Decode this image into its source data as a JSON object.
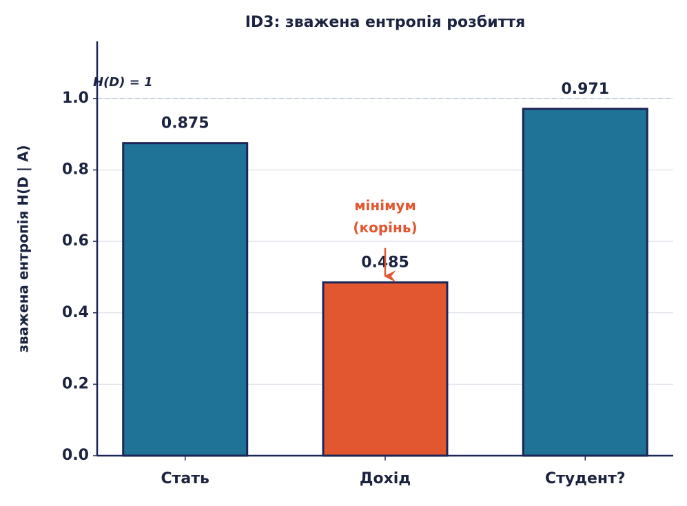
{
  "chart_data": {
    "type": "bar",
    "title": "ID3: зважена ентропія розбиття",
    "ylabel": "зважена ентропія H(D | A)",
    "categories": [
      "Стать",
      "Дохід",
      "Студент?"
    ],
    "values": [
      0.875,
      0.485,
      0.971
    ],
    "colors": [
      "#1f7396",
      "#e2572f",
      "#1f7396"
    ],
    "edge_color": "#1b2656",
    "ylim": [
      0,
      1.16
    ],
    "yticks": [
      {
        "value": 0,
        "label": "0.0"
      },
      0.2,
      0.4,
      0.6,
      0.8,
      {
        "value": 1,
        "label": "1.0"
      }
    ],
    "grid": true,
    "reference_line": {
      "value": 1,
      "label": "H(D) = 1"
    },
    "annotation": {
      "lines": [
        "мінімум",
        "(корінь)"
      ],
      "color": "#e2572f"
    }
  }
}
